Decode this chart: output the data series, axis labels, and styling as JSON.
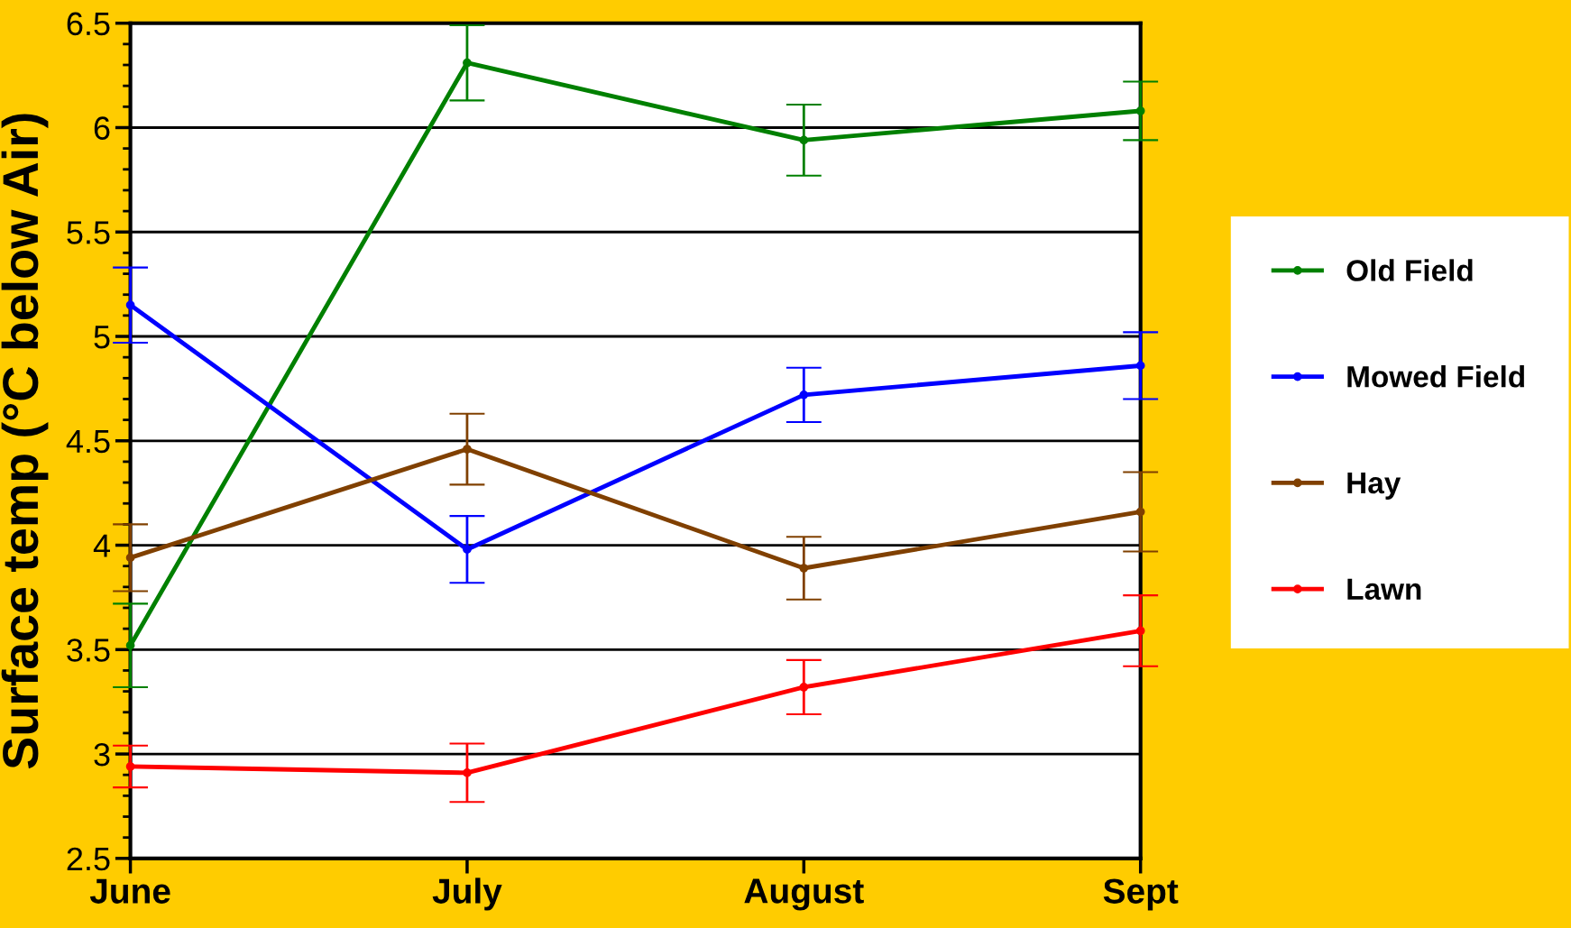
{
  "chart_data": {
    "type": "line",
    "ylabel": "Surface temp (°C below Air)",
    "categories": [
      "June",
      "July",
      "August",
      "Sept"
    ],
    "series": [
      {
        "name": "Old Field",
        "color": "#008000",
        "values": [
          3.52,
          6.31,
          5.94,
          6.08
        ],
        "errors": [
          0.2,
          0.18,
          0.17,
          0.14
        ]
      },
      {
        "name": "Mowed Field",
        "color": "#0000ff",
        "values": [
          5.15,
          3.98,
          4.72,
          4.86
        ],
        "errors": [
          0.18,
          0.16,
          0.13,
          0.16
        ]
      },
      {
        "name": "Hay",
        "color": "#804000",
        "values": [
          3.94,
          4.46,
          3.89,
          4.16
        ],
        "errors": [
          0.16,
          0.17,
          0.15,
          0.19
        ]
      },
      {
        "name": "Lawn",
        "color": "#ff0000",
        "values": [
          2.94,
          2.91,
          3.32,
          3.59
        ],
        "errors": [
          0.1,
          0.14,
          0.13,
          0.17
        ]
      }
    ],
    "ylim": [
      2.5,
      6.5
    ],
    "yticks": [
      2.5,
      3,
      3.5,
      4,
      4.5,
      5,
      5.5,
      6,
      6.5
    ],
    "grid": "y",
    "legend": "right",
    "marker": "circle",
    "line_style": "solid"
  }
}
